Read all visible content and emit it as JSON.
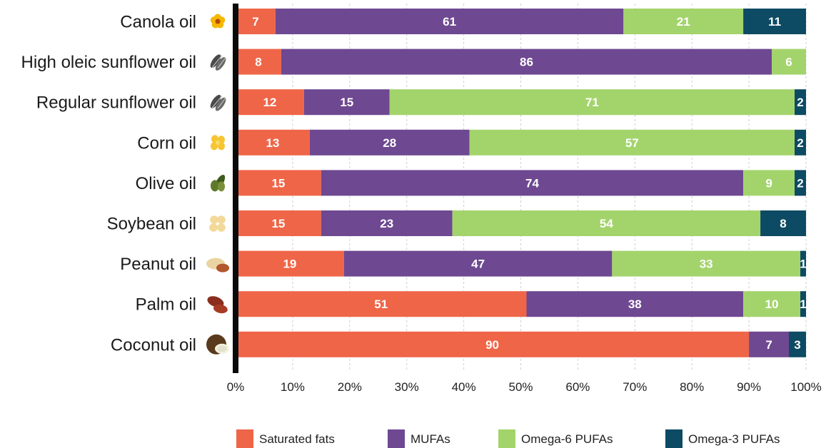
{
  "chart_data": {
    "type": "bar",
    "orientation": "horizontal",
    "stacked": true,
    "title": "",
    "xlabel": "",
    "ylabel": "",
    "xlim": [
      0,
      100
    ],
    "grid": true,
    "legend_position": "bottom",
    "categories": [
      "Canola oil",
      "High oleic sunflower oil",
      "Regular sunflower oil",
      "Corn oil",
      "Olive oil",
      "Soybean oil",
      "Peanut oil",
      "Palm oil",
      "Coconut oil"
    ],
    "category_icons": [
      "canola-flower-icon",
      "sunflower-seed-icon",
      "sunflower-seed-icon",
      "corn-kernel-icon",
      "olive-icon",
      "soybean-icon",
      "peanut-icon",
      "palm-fruit-icon",
      "coconut-icon"
    ],
    "x_ticks": [
      0,
      10,
      20,
      30,
      40,
      50,
      60,
      70,
      80,
      90,
      100
    ],
    "x_tick_labels": [
      "0%",
      "10%",
      "20%",
      "30%",
      "40%",
      "50%",
      "60%",
      "70%",
      "80%",
      "90%",
      "100%"
    ],
    "series": [
      {
        "name": "Saturated fats",
        "color": "#ef6548",
        "values": [
          7,
          8,
          12,
          13,
          15,
          15,
          19,
          51,
          90
        ]
      },
      {
        "name": "MUFAs",
        "color": "#6e4891",
        "values": [
          61,
          86,
          15,
          28,
          74,
          23,
          47,
          38,
          7
        ]
      },
      {
        "name": "Omega-6 PUFAs",
        "color": "#a3d46b",
        "values": [
          21,
          6,
          71,
          57,
          9,
          54,
          33,
          10,
          0
        ]
      },
      {
        "name": "Omega-3 PUFAs",
        "color": "#0d4a63",
        "values": [
          11,
          0,
          2,
          2,
          2,
          8,
          1,
          1,
          3
        ]
      }
    ]
  }
}
